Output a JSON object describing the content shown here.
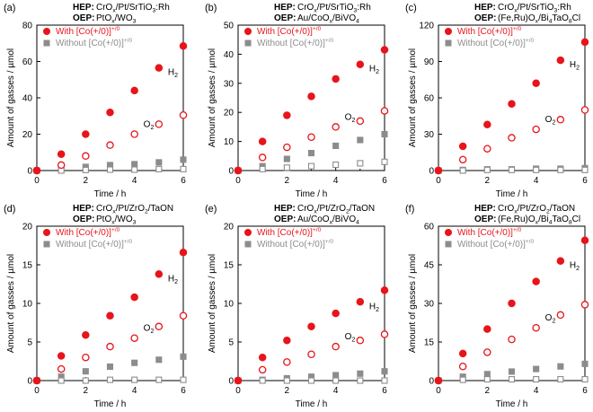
{
  "figure": {
    "legend_with": "With [Co(+/0)]",
    "legend_without": "Without [Co(+/0)]",
    "legend_sup": "+/0",
    "x_label": "Time / h",
    "y_label": "Amount of gasses / µmol",
    "hep_label": "HEP:",
    "oep_label": "OEP:",
    "h2_label": "H",
    "o2_label": "O",
    "sub_2": "2",
    "colors": {
      "with": "#e8141b",
      "without": "#8c8c8c",
      "axis": "#000000"
    }
  },
  "chart_data": [
    {
      "type": "scatter",
      "panel": "(a)",
      "hep": "CrOx/Pt/SrTiO3:Rh",
      "oep": "PtOx/WO3",
      "x": [
        0,
        1,
        2,
        3,
        4,
        5,
        6
      ],
      "xlim": [
        0,
        6
      ],
      "xticks": [
        0,
        2,
        4,
        6
      ],
      "ylim": [
        0,
        80
      ],
      "yticks": [
        0,
        20,
        40,
        60,
        80
      ],
      "xlabel": "Time / h",
      "ylabel": "Amount of gasses / µmol",
      "series": [
        {
          "name": "H2 with [Co(+/0)]",
          "values": [
            0,
            9,
            20,
            32,
            44,
            56.5,
            68.5
          ]
        },
        {
          "name": "O2 with [Co(+/0)]",
          "values": [
            0,
            3,
            8,
            14,
            20,
            25.5,
            30.5
          ]
        },
        {
          "name": "H2 without [Co(+/0)]",
          "values": [
            0,
            1,
            2,
            3,
            3.5,
            4.5,
            6
          ]
        },
        {
          "name": "O2 without [Co(+/0)]",
          "values": [
            0,
            0,
            0.3,
            0.5,
            0.5,
            0.8,
            0.8
          ]
        }
      ]
    },
    {
      "type": "scatter",
      "panel": "(b)",
      "hep": "CrOx/Pt/SrTiO3:Rh",
      "oep": "Au/CoOx/BiVO4",
      "x": [
        0,
        1,
        2,
        3,
        4,
        5,
        6
      ],
      "xlim": [
        0,
        6
      ],
      "xticks": [
        0,
        2,
        4,
        6
      ],
      "ylim": [
        0,
        50
      ],
      "yticks": [
        0,
        10,
        20,
        30,
        40,
        50
      ],
      "xlabel": "Time / h",
      "ylabel": "Amount of gasses / µmol",
      "series": [
        {
          "name": "H2 with [Co(+/0)]",
          "values": [
            0,
            10,
            19,
            25.5,
            31.5,
            36.5,
            41.5
          ]
        },
        {
          "name": "O2 with [Co(+/0)]",
          "values": [
            0,
            4.5,
            8,
            11.5,
            15,
            17,
            20.5
          ]
        },
        {
          "name": "H2 without [Co(+/0)]",
          "values": [
            0,
            1.5,
            4,
            6,
            8.5,
            10.5,
            12.5
          ]
        },
        {
          "name": "O2 without [Co(+/0)]",
          "values": [
            0,
            0.5,
            1,
            1.5,
            2,
            2.5,
            3
          ]
        }
      ]
    },
    {
      "type": "scatter",
      "panel": "(c)",
      "hep": "CrOx/Pt/SrTiO3:Rh",
      "oep": "(Fe,Ru)Ox/Bi4TaO8Cl",
      "x": [
        0,
        1,
        2,
        3,
        4,
        5,
        6
      ],
      "xlim": [
        0,
        6
      ],
      "xticks": [
        0,
        2,
        4,
        6
      ],
      "ylim": [
        0,
        120
      ],
      "yticks": [
        0,
        30,
        60,
        90,
        120
      ],
      "xlabel": "Time / h",
      "ylabel": "Amount of gasses / µmol",
      "series": [
        {
          "name": "H2 with [Co(+/0)]",
          "values": [
            0,
            20,
            38,
            55,
            72,
            91,
            106
          ]
        },
        {
          "name": "O2 with [Co(+/0)]",
          "values": [
            0,
            9,
            18,
            27,
            34,
            42,
            50
          ]
        },
        {
          "name": "H2 without [Co(+/0)]",
          "values": [
            0,
            0.5,
            1,
            1,
            1.5,
            1.5,
            2
          ]
        },
        {
          "name": "O2 without [Co(+/0)]",
          "values": [
            0,
            0,
            0.5,
            0.5,
            0.5,
            0.5,
            0.5
          ]
        }
      ]
    },
    {
      "type": "scatter",
      "panel": "(d)",
      "hep": "CrOx/Pt/ZrO2/TaON",
      "oep": "PtOx/WO3",
      "x": [
        0,
        1,
        2,
        3,
        4,
        5,
        6
      ],
      "xlim": [
        0,
        6
      ],
      "xticks": [
        0,
        2,
        4,
        6
      ],
      "ylim": [
        0,
        20
      ],
      "yticks": [
        0,
        5,
        10,
        15,
        20
      ],
      "xlabel": "Time / h",
      "ylabel": "Amount of gasses / µmol",
      "series": [
        {
          "name": "H2 with [Co(+/0)]",
          "values": [
            0,
            3.2,
            5.9,
            8.4,
            10.8,
            13.8,
            16.6
          ]
        },
        {
          "name": "O2 with [Co(+/0)]",
          "values": [
            0,
            1.5,
            3,
            4.4,
            5.5,
            7,
            8.4
          ]
        },
        {
          "name": "H2 without [Co(+/0)]",
          "values": [
            0,
            0.5,
            1.2,
            1.8,
            2.3,
            2.7,
            3.1
          ]
        },
        {
          "name": "O2 without [Co(+/0)]",
          "values": [
            0,
            0,
            0,
            0.1,
            0.1,
            0.1,
            0.1
          ]
        }
      ]
    },
    {
      "type": "scatter",
      "panel": "(e)",
      "hep": "CrOx/Pt/ZrO2/TaON",
      "oep": "Au/CoOx/BiVO4",
      "x": [
        0,
        1,
        2,
        3,
        4,
        5,
        6
      ],
      "xlim": [
        0,
        6
      ],
      "xticks": [
        0,
        2,
        4,
        6
      ],
      "ylim": [
        0,
        20
      ],
      "yticks": [
        0,
        5,
        10,
        15,
        20
      ],
      "xlabel": "Time / h",
      "ylabel": "Amount of gasses / µmol",
      "series": [
        {
          "name": "H2 with [Co(+/0)]",
          "values": [
            0,
            3,
            5.2,
            7,
            8.7,
            10.2,
            11.7
          ]
        },
        {
          "name": "O2 with [Co(+/0)]",
          "values": [
            0,
            1.4,
            2.4,
            3.4,
            4.4,
            5.2,
            6
          ]
        },
        {
          "name": "H2 without [Co(+/0)]",
          "values": [
            0,
            0.1,
            0.3,
            0.5,
            0.7,
            0.9,
            1.2
          ]
        },
        {
          "name": "O2 without [Co(+/0)]",
          "values": [
            0,
            0,
            0,
            0,
            0,
            0,
            0
          ]
        }
      ]
    },
    {
      "type": "scatter",
      "panel": "(f)",
      "hep": "CrOx/Pt/ZrO2/TaON",
      "oep": "(Fe,Ru)Ox/Bi4TaO8Cl",
      "x": [
        0,
        1,
        2,
        3,
        4,
        5,
        6
      ],
      "xlim": [
        0,
        6
      ],
      "xticks": [
        0,
        2,
        4,
        6
      ],
      "ylim": [
        0,
        60
      ],
      "yticks": [
        0,
        15,
        30,
        45,
        60
      ],
      "xlabel": "Time / h",
      "ylabel": "Amount of gasses / µmol",
      "series": [
        {
          "name": "H2 with [Co(+/0)]",
          "values": [
            0,
            10.5,
            20,
            30,
            38.5,
            46.5,
            54.5
          ]
        },
        {
          "name": "O2 with [Co(+/0)]",
          "values": [
            0,
            5.5,
            11,
            16,
            20.5,
            25.5,
            29.5
          ]
        },
        {
          "name": "H2 without [Co(+/0)]",
          "values": [
            0,
            1.5,
            2.5,
            3.5,
            4.5,
            5.5,
            6.5
          ]
        },
        {
          "name": "O2 without [Co(+/0)]",
          "values": [
            0,
            0.3,
            0.5,
            0.5,
            0.5,
            0.5,
            0.5
          ]
        }
      ]
    }
  ]
}
